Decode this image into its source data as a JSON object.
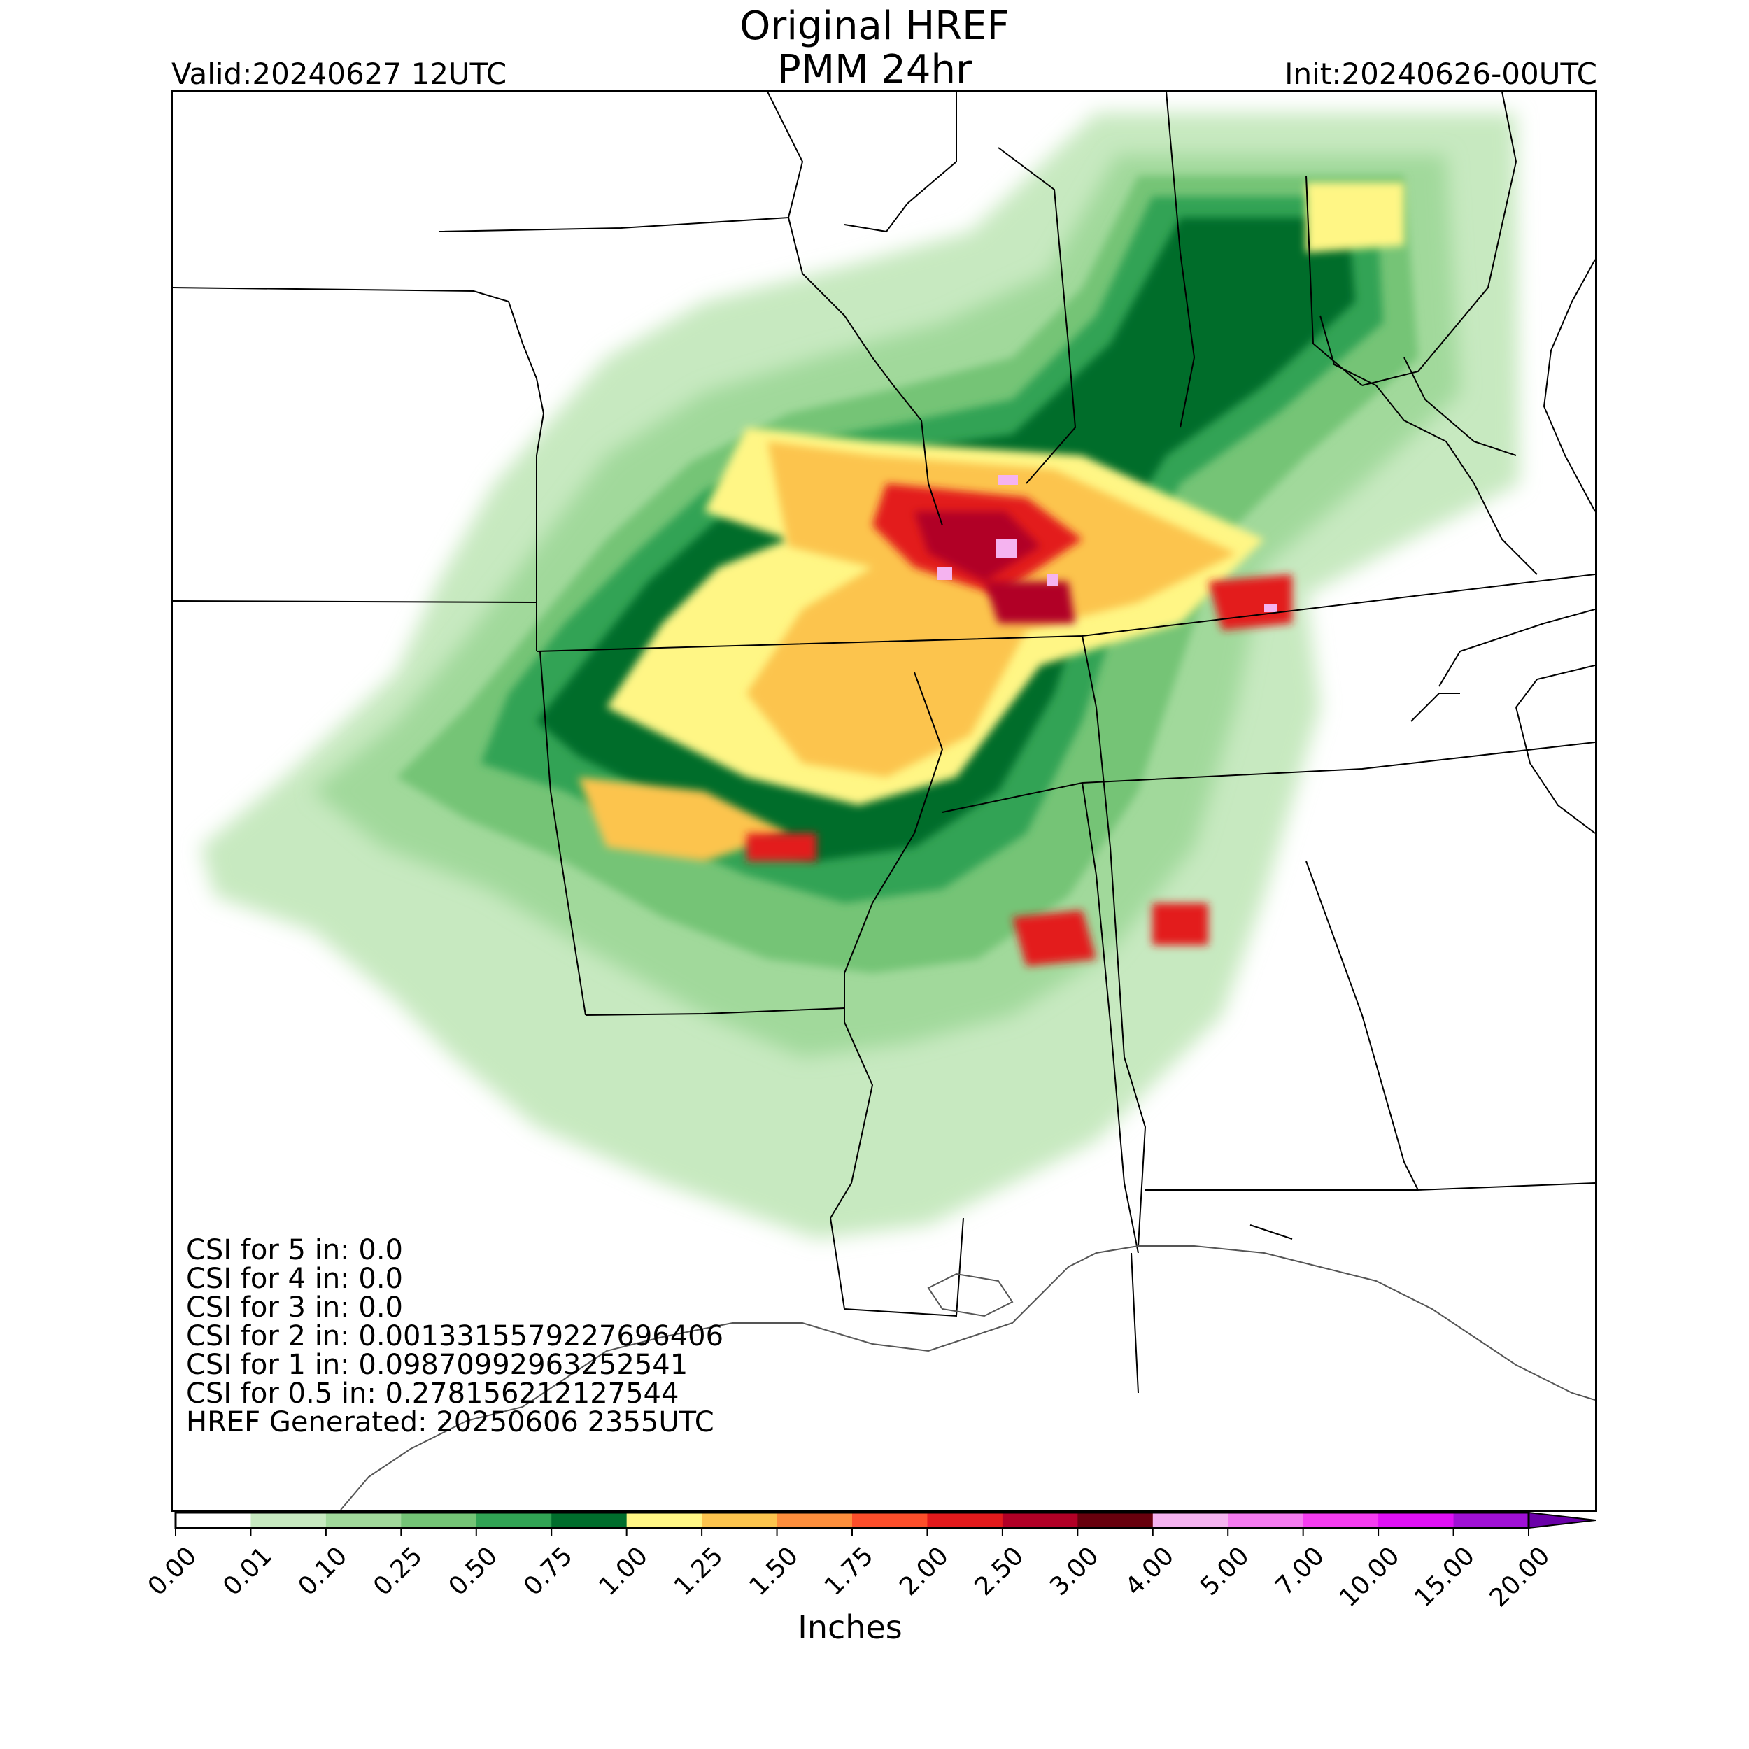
{
  "header": {
    "title": "Original HREF",
    "subtitle": "PMM 24hr",
    "valid": "Valid:20240627 12UTC",
    "init": "Init:20240626-00UTC"
  },
  "stats": [
    "CSI for 5 in: 0.0",
    "CSI for 4 in: 0.0",
    "CSI for 3 in: 0.0",
    "CSI for 2 in: 0.0013315579227696406",
    "CSI for 1 in: 0.09870992963252541",
    "CSI for 0.5 in: 0.278156212127544",
    "HREF Generated: 20250606 2355UTC"
  ],
  "colorbar": {
    "label": "Inches",
    "ticks": [
      "0.00",
      "0.01",
      "0.10",
      "0.25",
      "0.50",
      "0.75",
      "1.00",
      "1.25",
      "1.50",
      "1.75",
      "2.00",
      "2.50",
      "3.00",
      "4.00",
      "5.00",
      "7.00",
      "10.00",
      "15.00",
      "20.00"
    ],
    "colors": [
      "#ffffff",
      "#c7e9c0",
      "#a1d99b",
      "#74c476",
      "#31a354",
      "#006d2c",
      "#fff685",
      "#fcc44e",
      "#fd8e3c",
      "#fc4e2a",
      "#e31a1c",
      "#b10026",
      "#67000d",
      "#f5b3f0",
      "#f57bf0",
      "#f53cf0",
      "#e010f5",
      "#a010d5"
    ],
    "extend_color": "#6a00a8"
  },
  "map": {
    "colors": {
      "trace": "#c7e9c0",
      "light": "#a1d99b",
      "medium": "#74c476",
      "mid": "#31a354",
      "dark": "#006d2c",
      "yellow": "#fff685",
      "orange": "#fcc44e",
      "red": "#e31a1c",
      "maroon": "#b10026",
      "pink": "#f5b3f0",
      "border": "#000000",
      "coast": "#555555"
    }
  }
}
